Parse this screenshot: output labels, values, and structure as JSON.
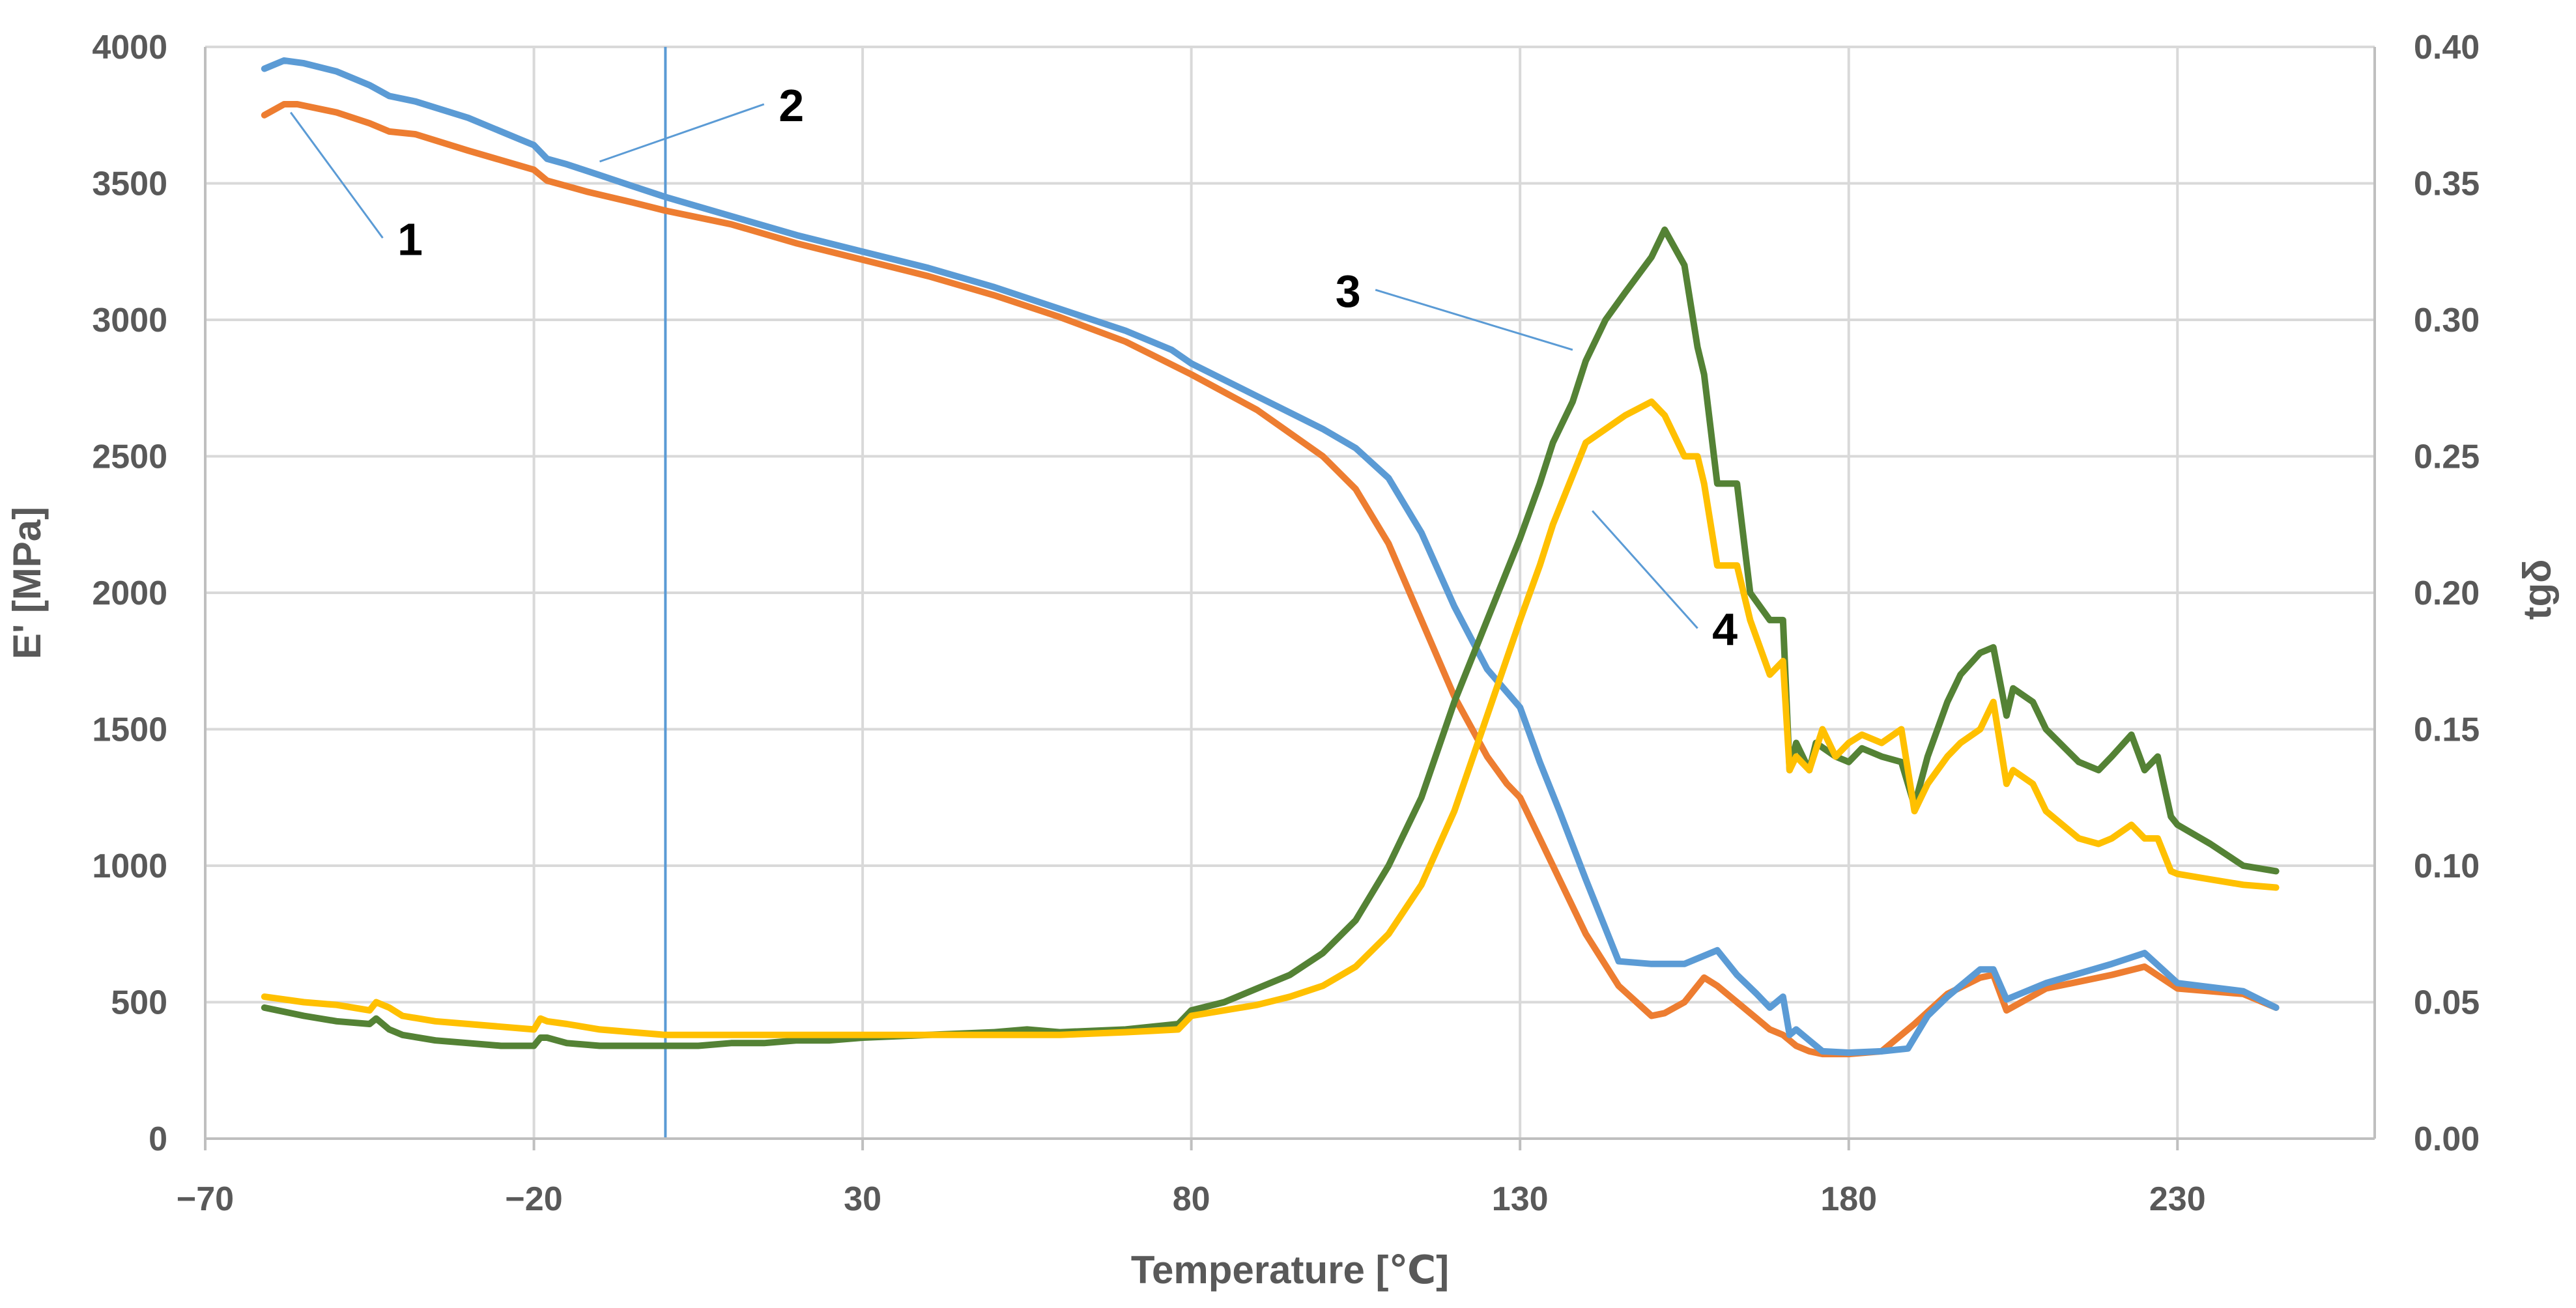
{
  "chart_data": {
    "type": "line",
    "title": "",
    "xlabel": "Temperature [℃]",
    "ylabel": "E' [MPa]",
    "y2label": "tgδ",
    "xlim": [
      -70,
      260
    ],
    "ylim": [
      0,
      4000
    ],
    "y2lim": [
      0,
      0.4
    ],
    "xticks": [
      -70,
      -20,
      30,
      80,
      130,
      180,
      230
    ],
    "xtick_labels": [
      "−70",
      "−20",
      "30",
      "80",
      "130",
      "180",
      "230"
    ],
    "yticks": [
      0,
      500,
      1000,
      1500,
      2000,
      2500,
      3000,
      3500,
      4000
    ],
    "ytick_labels": [
      "0",
      "500",
      "1000",
      "1500",
      "2000",
      "2500",
      "3000",
      "3500",
      "4000"
    ],
    "y2ticks": [
      0,
      0.05,
      0.1,
      0.15,
      0.2,
      0.25,
      0.3,
      0.35,
      0.4
    ],
    "y2tick_labels": [
      "0.00",
      "0.05",
      "0.10",
      "0.15",
      "0.20",
      "0.25",
      "0.30",
      "0.35",
      "0.40"
    ],
    "grid": true,
    "vline_x": 0,
    "series": [
      {
        "name": "1",
        "axis": "left",
        "color": "#ED7D31",
        "x": [
          -61,
          -58,
          -56,
          -50,
          -45,
          -42,
          -38,
          -30,
          -20,
          -18,
          -12,
          -5,
          0,
          10,
          20,
          30,
          40,
          50,
          60,
          70,
          80,
          90,
          100,
          105,
          110,
          115,
          120,
          125,
          128,
          130,
          133,
          136,
          140,
          145,
          150,
          152,
          155,
          158,
          160,
          163,
          166,
          168,
          170,
          172,
          174,
          176,
          180,
          185,
          190,
          195,
          200,
          202,
          204,
          210,
          220,
          225,
          230,
          240,
          245
        ],
        "y": [
          3750,
          3790,
          3790,
          3760,
          3720,
          3690,
          3680,
          3620,
          3550,
          3510,
          3470,
          3430,
          3400,
          3350,
          3280,
          3220,
          3160,
          3090,
          3010,
          2920,
          2800,
          2670,
          2500,
          2380,
          2180,
          1900,
          1620,
          1400,
          1300,
          1250,
          1100,
          950,
          750,
          560,
          450,
          460,
          500,
          590,
          560,
          500,
          440,
          400,
          380,
          340,
          320,
          310,
          310,
          320,
          420,
          530,
          590,
          600,
          470,
          550,
          600,
          630,
          550,
          530,
          480
        ]
      },
      {
        "name": "2",
        "axis": "left",
        "color": "#5B9BD5",
        "x": [
          -61,
          -58,
          -55,
          -50,
          -45,
          -42,
          -38,
          -30,
          -22,
          -20,
          -18,
          -15,
          -10,
          -5,
          0,
          10,
          20,
          30,
          40,
          50,
          60,
          70,
          77,
          80,
          90,
          100,
          105,
          110,
          115,
          120,
          125,
          130,
          133,
          136,
          140,
          145,
          150,
          155,
          160,
          163,
          166,
          168,
          170,
          171,
          172,
          174,
          176,
          180,
          185,
          189,
          192,
          195,
          200,
          202,
          204,
          210,
          220,
          225,
          230,
          240,
          245
        ],
        "y": [
          3920,
          3950,
          3940,
          3910,
          3860,
          3820,
          3800,
          3740,
          3660,
          3640,
          3590,
          3570,
          3530,
          3490,
          3450,
          3380,
          3310,
          3250,
          3190,
          3120,
          3040,
          2960,
          2890,
          2840,
          2720,
          2600,
          2530,
          2420,
          2220,
          1950,
          1720,
          1580,
          1380,
          1200,
          950,
          650,
          640,
          640,
          690,
          600,
          530,
          480,
          520,
          380,
          400,
          360,
          320,
          315,
          320,
          330,
          450,
          520,
          620,
          620,
          510,
          570,
          640,
          680,
          570,
          540,
          480
        ]
      },
      {
        "name": "3",
        "axis": "right",
        "color": "#548235",
        "x": [
          -61,
          -55,
          -50,
          -45,
          -44,
          -42,
          -40,
          -35,
          -30,
          -25,
          -20,
          -19,
          -18,
          -15,
          -10,
          -5,
          0,
          5,
          10,
          15,
          20,
          25,
          30,
          40,
          50,
          55,
          60,
          70,
          78,
          80,
          85,
          90,
          95,
          100,
          105,
          110,
          115,
          120,
          125,
          130,
          133,
          135,
          138,
          140,
          143,
          146,
          150,
          152,
          155,
          157,
          158,
          160,
          161,
          163,
          165,
          168,
          170,
          171,
          172,
          174,
          175,
          178,
          180,
          182,
          185,
          188,
          190,
          192,
          195,
          197,
          200,
          202,
          204,
          205,
          208,
          210,
          215,
          218,
          220,
          223,
          225,
          227,
          229,
          230,
          235,
          240,
          245
        ],
        "y": [
          0.048,
          0.045,
          0.043,
          0.042,
          0.044,
          0.04,
          0.038,
          0.036,
          0.035,
          0.034,
          0.034,
          0.037,
          0.037,
          0.035,
          0.034,
          0.034,
          0.034,
          0.034,
          0.035,
          0.035,
          0.036,
          0.036,
          0.037,
          0.038,
          0.039,
          0.04,
          0.039,
          0.04,
          0.042,
          0.047,
          0.05,
          0.055,
          0.06,
          0.068,
          0.08,
          0.1,
          0.125,
          0.16,
          0.19,
          0.22,
          0.24,
          0.255,
          0.27,
          0.285,
          0.3,
          0.31,
          0.323,
          0.333,
          0.32,
          0.29,
          0.28,
          0.24,
          0.24,
          0.24,
          0.2,
          0.19,
          0.19,
          0.135,
          0.145,
          0.135,
          0.145,
          0.14,
          0.138,
          0.143,
          0.14,
          0.138,
          0.122,
          0.14,
          0.16,
          0.17,
          0.178,
          0.18,
          0.155,
          0.165,
          0.16,
          0.15,
          0.138,
          0.135,
          0.14,
          0.148,
          0.135,
          0.14,
          0.118,
          0.115,
          0.108,
          0.1,
          0.098
        ]
      },
      {
        "name": "4",
        "axis": "right",
        "color": "#FFC000",
        "x": [
          -61,
          -55,
          -50,
          -45,
          -44,
          -42,
          -40,
          -35,
          -30,
          -25,
          -20,
          -19,
          -18,
          -15,
          -10,
          -5,
          0,
          5,
          10,
          15,
          20,
          25,
          30,
          40,
          50,
          55,
          60,
          70,
          78,
          80,
          85,
          90,
          95,
          100,
          105,
          110,
          115,
          120,
          125,
          130,
          133,
          135,
          140,
          143,
          146,
          150,
          152,
          155,
          157,
          158,
          160,
          161,
          163,
          165,
          168,
          170,
          171,
          172,
          174,
          176,
          178,
          180,
          182,
          185,
          188,
          190,
          192,
          195,
          197,
          200,
          202,
          204,
          205,
          208,
          210,
          215,
          218,
          220,
          223,
          225,
          227,
          229,
          230,
          235,
          240,
          245
        ],
        "y": [
          0.052,
          0.05,
          0.049,
          0.047,
          0.05,
          0.048,
          0.045,
          0.043,
          0.042,
          0.041,
          0.04,
          0.044,
          0.043,
          0.042,
          0.04,
          0.039,
          0.038,
          0.038,
          0.038,
          0.038,
          0.038,
          0.038,
          0.038,
          0.038,
          0.038,
          0.038,
          0.038,
          0.039,
          0.04,
          0.045,
          0.047,
          0.049,
          0.052,
          0.056,
          0.063,
          0.075,
          0.093,
          0.12,
          0.155,
          0.19,
          0.21,
          0.225,
          0.255,
          0.26,
          0.265,
          0.27,
          0.265,
          0.25,
          0.25,
          0.24,
          0.21,
          0.21,
          0.21,
          0.19,
          0.17,
          0.175,
          0.135,
          0.14,
          0.135,
          0.15,
          0.14,
          0.145,
          0.148,
          0.145,
          0.15,
          0.12,
          0.13,
          0.14,
          0.145,
          0.15,
          0.16,
          0.13,
          0.135,
          0.13,
          0.12,
          0.11,
          0.108,
          0.11,
          0.115,
          0.11,
          0.11,
          0.098,
          0.097,
          0.095,
          0.093,
          0.092
        ]
      }
    ],
    "annotations": [
      {
        "text": "1",
        "at": [
          -43,
          3300
        ],
        "points_to": [
          -57,
          3760
        ]
      },
      {
        "text": "2",
        "at": [
          15,
          3790
        ],
        "points_to": [
          -10,
          3580
        ]
      },
      {
        "text": "3",
        "at": [
          108,
          3110
        ],
        "points_to": [
          138,
          2890
        ]
      },
      {
        "text": "4",
        "at": [
          157,
          1870
        ],
        "points_to": [
          141,
          2300
        ]
      }
    ]
  }
}
